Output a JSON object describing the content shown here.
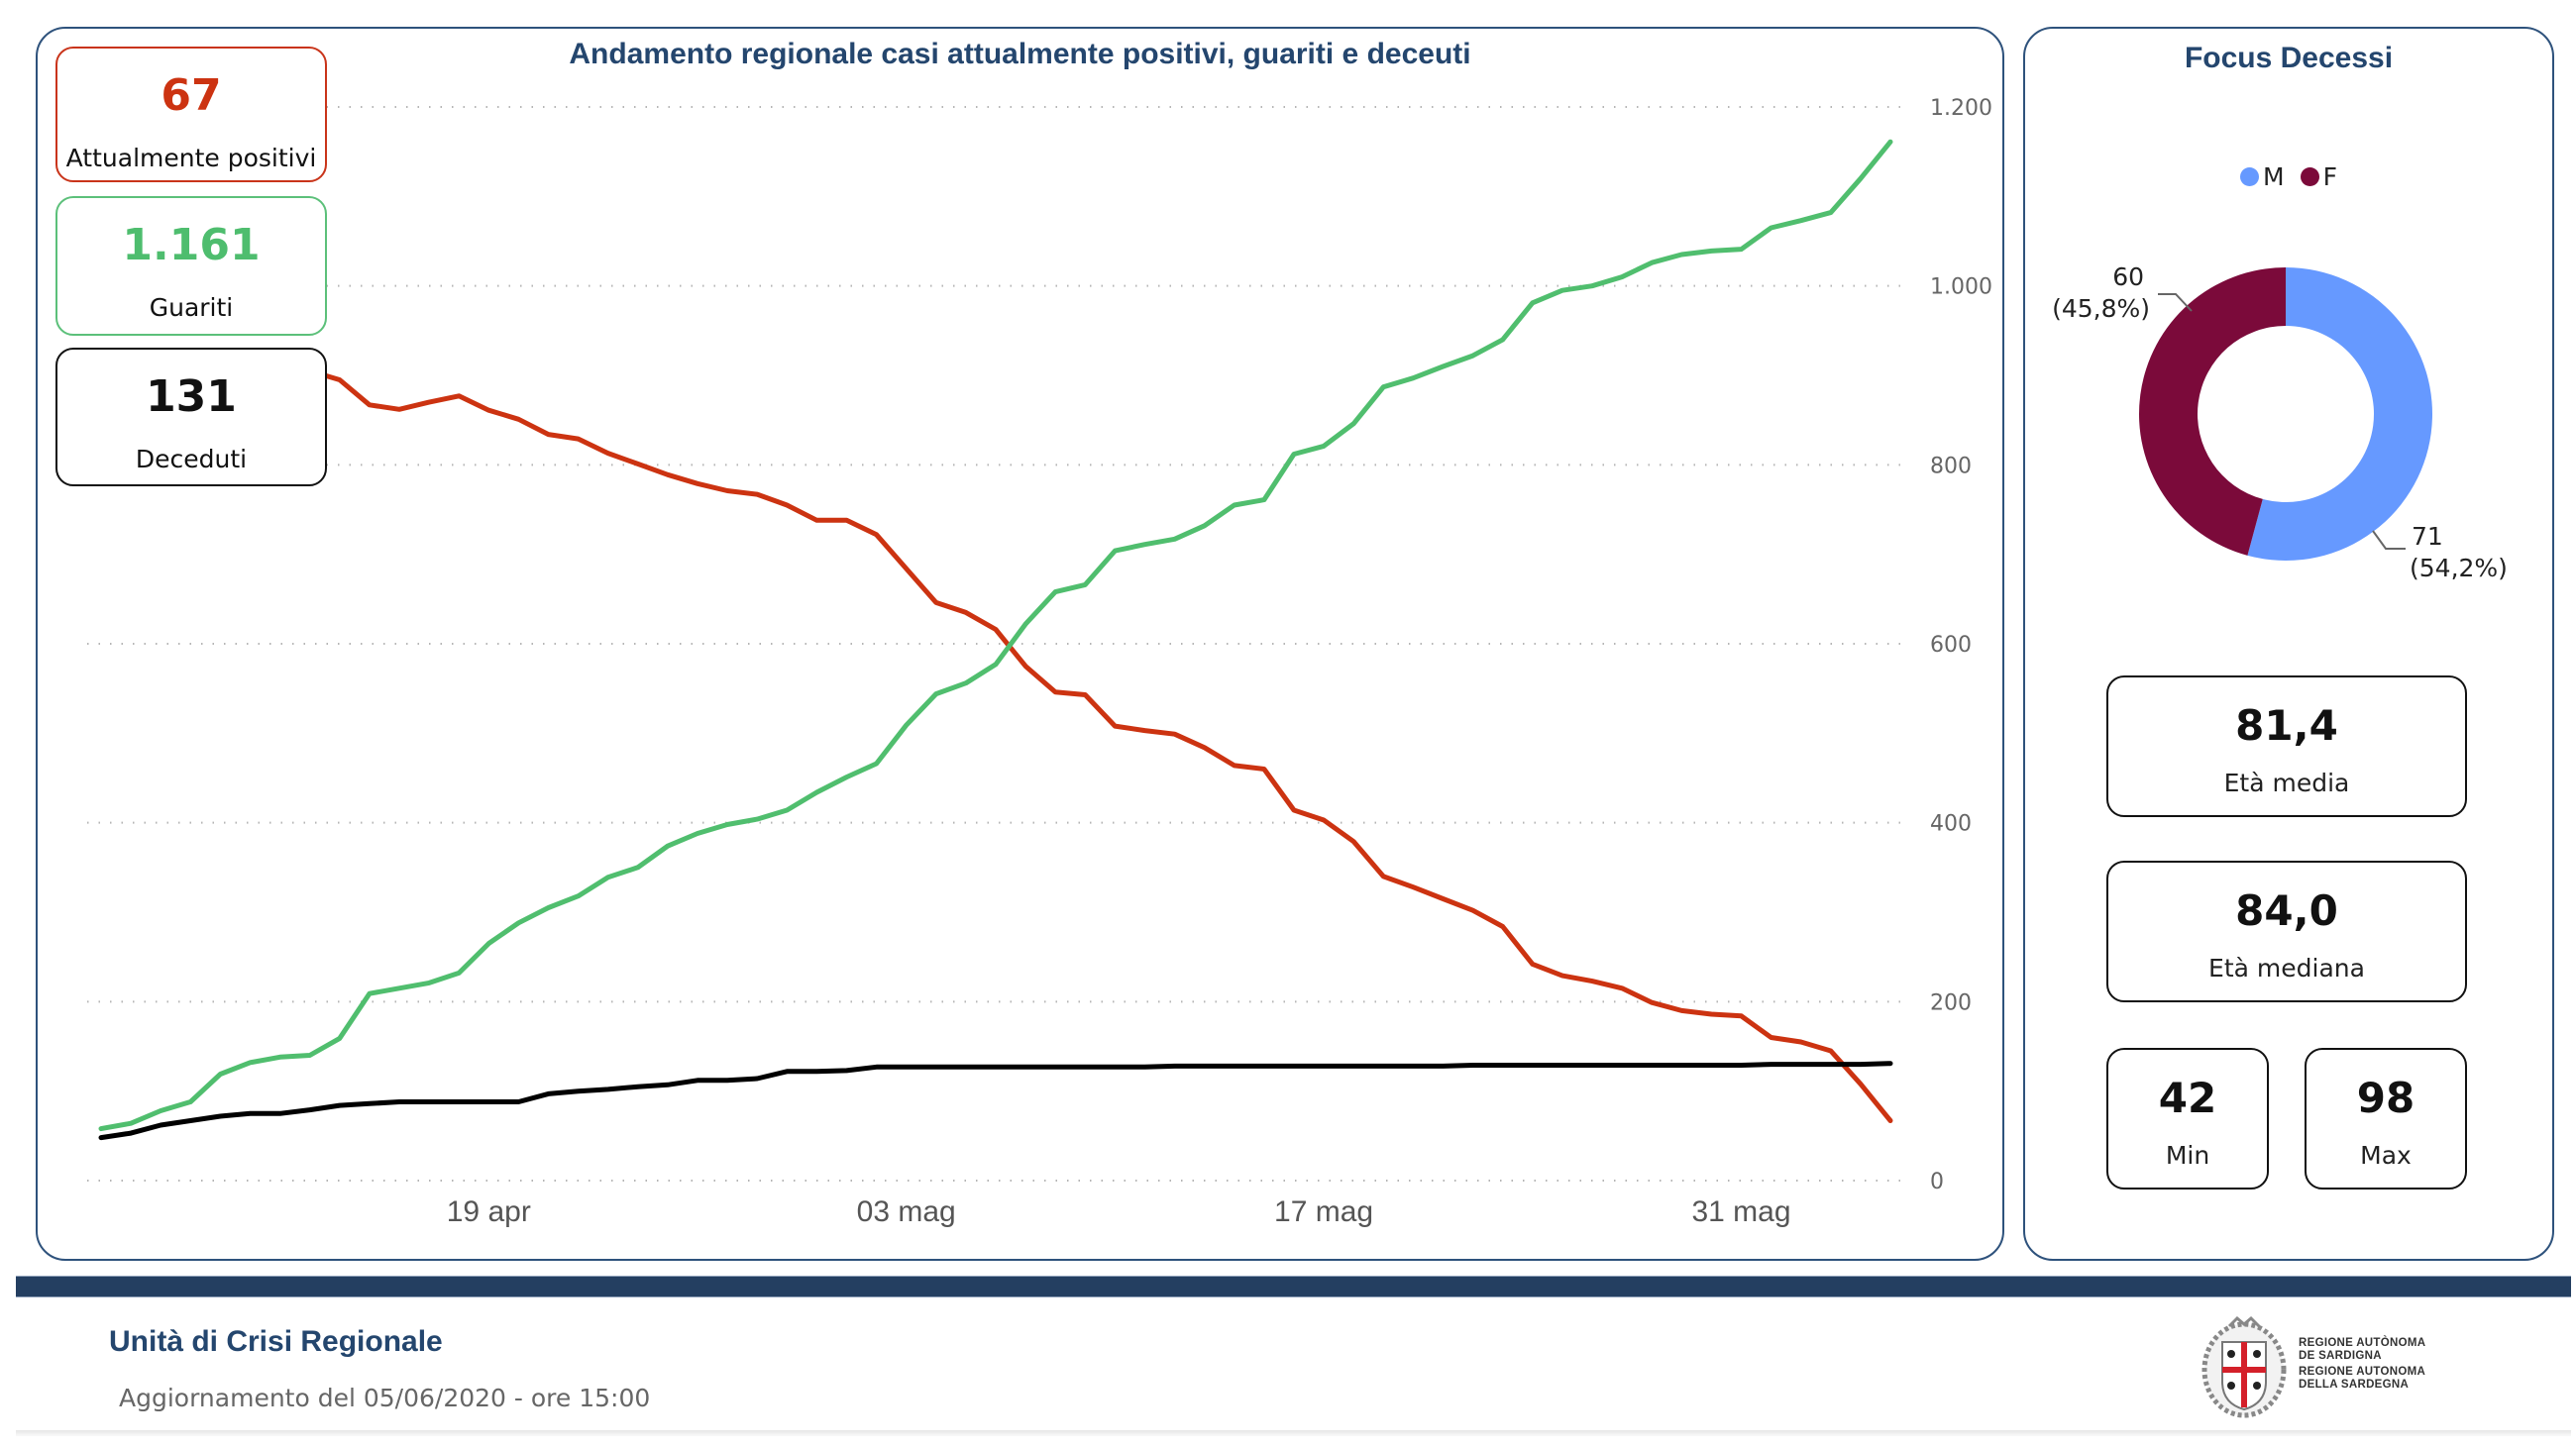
{
  "main": {
    "title": "Andamento regionale casi attualmente positivi, guariti e deceuti",
    "kpis": {
      "positivi": {
        "value": "67",
        "label": "Attualmente positivi"
      },
      "guariti": {
        "value": "1.161",
        "label": "Guariti"
      },
      "deceduti": {
        "value": "131",
        "label": "Deceduti"
      }
    }
  },
  "side": {
    "title": "Focus Decessi",
    "legend": [
      {
        "label": "M",
        "color": "#6699ff"
      },
      {
        "label": "F",
        "color": "#7b0a3a"
      }
    ],
    "donut_labels": {
      "F": {
        "count": "60",
        "pct": "(45,8%)"
      },
      "M": {
        "count": "71",
        "pct": "(54,2%)"
      }
    },
    "stats": {
      "media": {
        "value": "81,4",
        "label": "Età media"
      },
      "mediana": {
        "value": "84,0",
        "label": "Età mediana"
      },
      "min": {
        "value": "42",
        "label": "Min"
      },
      "max": {
        "value": "98",
        "label": "Max"
      }
    }
  },
  "footer": {
    "title": "Unità di Crisi Regionale",
    "update": "Aggiornamento del 05/06/2020 - ore 15:00",
    "logo_lines": [
      "REGIONE AUTÒNOMA",
      "DE SARDIGNA",
      "REGIONE AUTONOMA",
      "DELLA SARDEGNA"
    ]
  },
  "chart_data": [
    {
      "type": "line",
      "title": "Andamento regionale casi attualmente positivi, guariti e deceuti",
      "xlabel": "",
      "ylabel": "",
      "x_start": "2020-04-06",
      "x_end": "2020-06-05",
      "x_tick_labels": [
        {
          "label": "19 apr",
          "day_index": 13
        },
        {
          "label": "03 mag",
          "day_index": 27
        },
        {
          "label": "17 mag",
          "day_index": 41
        },
        {
          "label": "31 mag",
          "day_index": 55
        }
      ],
      "y_ticks": [
        0,
        200,
        400,
        600,
        800,
        1000,
        1200
      ],
      "y_tick_labels": [
        "0",
        "200",
        "400",
        "600",
        "800",
        "1.000",
        "1.200"
      ],
      "ylim": [
        0,
        1200
      ],
      "y_axis_position": "right",
      "grid": true,
      "legend": "none",
      "series": [
        {
          "name": "Attualmente positivi",
          "color": "#cc3311",
          "values": [
            880,
            890,
            900,
            905,
            912,
            915,
            910,
            905,
            895,
            867,
            862,
            870,
            877,
            861,
            851,
            834,
            829,
            813,
            801,
            789,
            779,
            771,
            767,
            755,
            738,
            738,
            722,
            684,
            646,
            635,
            616,
            575,
            546,
            543,
            508,
            503,
            499,
            484,
            464,
            460,
            414,
            403,
            379,
            340,
            328,
            315,
            302,
            284,
            242,
            229,
            223,
            215,
            199,
            190,
            186,
            184,
            160,
            155,
            145,
            108,
            67
          ]
        },
        {
          "name": "Guariti",
          "color": "#50be6e",
          "values": [
            58,
            64,
            78,
            88,
            119,
            132,
            138,
            140,
            159,
            209,
            215,
            221,
            232,
            265,
            288,
            305,
            318,
            339,
            350,
            374,
            388,
            398,
            404,
            414,
            434,
            451,
            466,
            509,
            544,
            556,
            577,
            622,
            658,
            666,
            704,
            711,
            717,
            732,
            755,
            761,
            812,
            821,
            846,
            887,
            897,
            910,
            922,
            940,
            981,
            995,
            1000,
            1010,
            1026,
            1035,
            1039,
            1041,
            1065,
            1073,
            1082,
            1120,
            1161
          ]
        },
        {
          "name": "Deceduti",
          "color": "#000000",
          "values": [
            48,
            53,
            62,
            67,
            72,
            75,
            75,
            79,
            84,
            86,
            88,
            88,
            88,
            88,
            88,
            97,
            100,
            102,
            105,
            107,
            112,
            112,
            114,
            122,
            122,
            123,
            127,
            127,
            127,
            127,
            127,
            127,
            127,
            127,
            127,
            127,
            128,
            128,
            128,
            128,
            128,
            128,
            128,
            128,
            128,
            128,
            129,
            129,
            129,
            129,
            129,
            129,
            129,
            129,
            129,
            129,
            130,
            130,
            130,
            130,
            131
          ]
        }
      ]
    },
    {
      "type": "pie",
      "title": "Focus Decessi",
      "donut": true,
      "legend": "top-center",
      "categories": [
        "M",
        "F"
      ],
      "values": [
        71,
        60
      ],
      "percentages": [
        54.2,
        45.8
      ],
      "colors": [
        "#6699ff",
        "#7b0a3a"
      ]
    }
  ]
}
